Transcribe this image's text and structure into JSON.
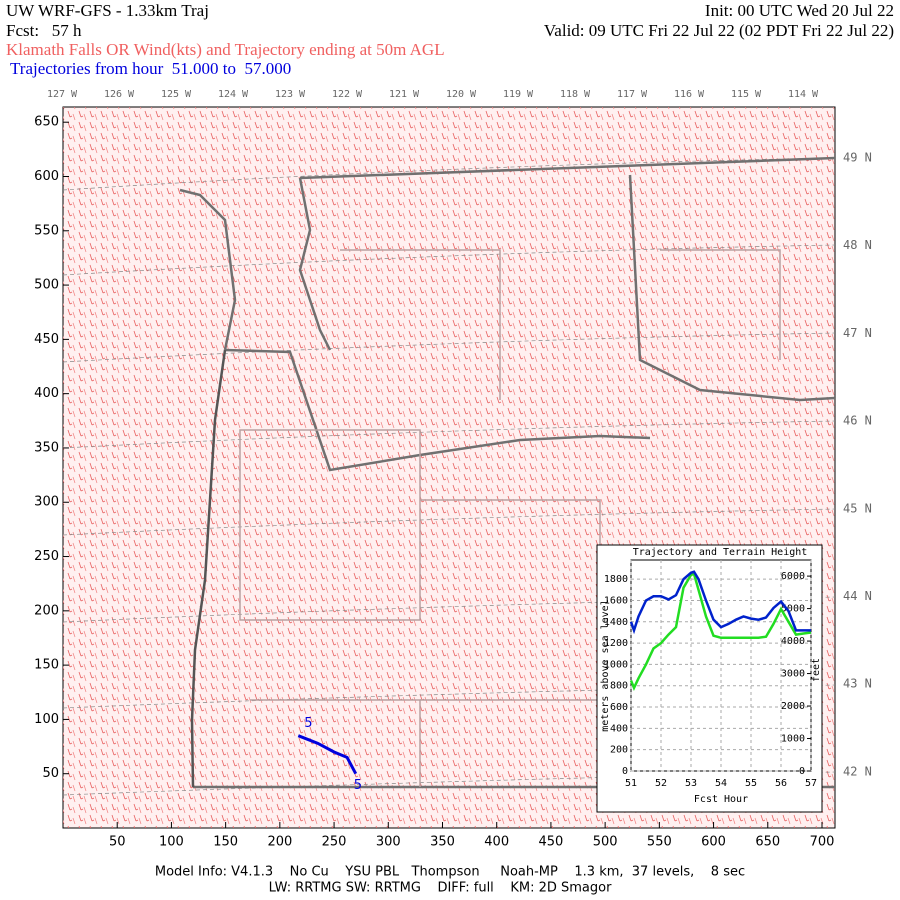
{
  "header": {
    "title": "UW WRF-GFS - 1.33km Traj",
    "init": "Init: 00 UTC Wed 20 Jul 22",
    "fcst": "Fcst:   57 h",
    "valid": "Valid: 09 UTC Fri 22 Jul 22 (02 PDT Fri 22 Jul 22)",
    "subtitle": "Klamath Falls OR Wind(kts) and Trajectory ending at 50m AGL",
    "hours": "Trajectories from hour  51.000 to  57.000"
  },
  "map": {
    "xlim": [
      0,
      712
    ],
    "ylim": [
      0,
      664
    ],
    "xticks": [
      50,
      100,
      150,
      200,
      250,
      300,
      350,
      400,
      450,
      500,
      550,
      600,
      650,
      700
    ],
    "yticks": [
      50,
      100,
      150,
      200,
      250,
      300,
      350,
      400,
      450,
      500,
      550,
      600,
      650
    ],
    "lon_labels": [
      "127 W",
      "126 W",
      "125 W",
      "124 W",
      "123 W",
      "122 W",
      "121 W",
      "120 W",
      "119 W",
      "118 W",
      "117 W",
      "116 W",
      "115 W",
      "114 W"
    ],
    "lat_labels": [
      "49 N",
      "48 N",
      "47 N",
      "46 N",
      "45 N",
      "44 N",
      "43 N",
      "42 N"
    ],
    "trajectory": {
      "x": [
        217,
        235,
        250,
        262,
        270
      ],
      "y": [
        85,
        78,
        70,
        65,
        50
      ],
      "color": "#0000dd",
      "end_labels": [
        "5",
        "5"
      ]
    }
  },
  "chart_data": {
    "type": "line",
    "title": "Trajectory and Terrain Height",
    "xlabel": "Fcst Hour",
    "ylabel": "meters above sea level",
    "y2label": "feet",
    "x": [
      51,
      51.1,
      51.25,
      51.5,
      51.75,
      52,
      52.25,
      52.5,
      52.75,
      53,
      53.1,
      53.25,
      53.5,
      53.75,
      54,
      54.25,
      54.5,
      54.75,
      55,
      55.25,
      55.5,
      55.75,
      56,
      56.25,
      56.5,
      56.75,
      57
    ],
    "xlim": [
      51,
      57
    ],
    "xticks": [
      51,
      52,
      53,
      54,
      55,
      56,
      57
    ],
    "ylim": [
      0,
      1980
    ],
    "yticks": [
      0,
      200,
      400,
      600,
      800,
      1000,
      1200,
      1400,
      1600,
      1800
    ],
    "y2lim": [
      0,
      6496
    ],
    "y2ticks": [
      0,
      1000,
      2000,
      3000,
      4000,
      5000,
      6000
    ],
    "grid": true,
    "series": [
      {
        "name": "Terrain Height",
        "color": "#22dd22",
        "values": [
          850,
          780,
          870,
          1000,
          1150,
          1200,
          1280,
          1350,
          1720,
          1840,
          1850,
          1700,
          1450,
          1270,
          1250,
          1250,
          1250,
          1250,
          1250,
          1250,
          1260,
          1380,
          1520,
          1400,
          1280,
          1290,
          1300
        ]
      },
      {
        "name": "Trajectory",
        "color": "#0022cc",
        "values": [
          1400,
          1320,
          1450,
          1600,
          1640,
          1640,
          1610,
          1650,
          1800,
          1860,
          1870,
          1800,
          1600,
          1420,
          1350,
          1380,
          1420,
          1450,
          1430,
          1420,
          1440,
          1530,
          1590,
          1500,
          1320,
          1320,
          1320
        ]
      }
    ]
  },
  "footer": {
    "line1": "Model Info: V4.1.3    No Cu    YSU PBL   Thompson     Noah-MP    1.3 km,  37 levels,    8 sec",
    "line2": "LW: RRTMG SW: RRTMG    DIFF: full    KM: 2D Smagor"
  }
}
